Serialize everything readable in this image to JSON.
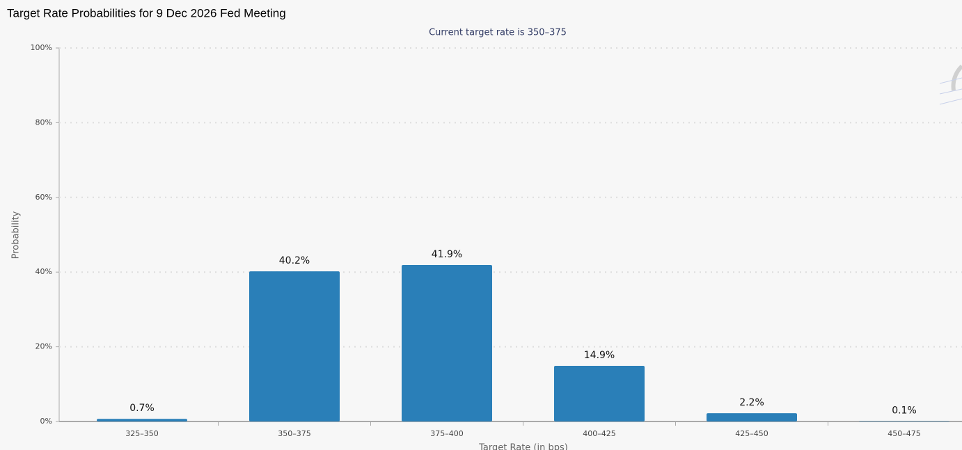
{
  "chart_data": {
    "type": "bar",
    "title": "Target Rate Probabilities for 9 Dec 2026 Fed Meeting",
    "subtitle": "Current target rate is 350–375",
    "x_label": "Target Rate (in bps)",
    "y_label": "Probability",
    "categories": [
      "325–350",
      "350–375",
      "375–400",
      "400–425",
      "425–450",
      "450–475"
    ],
    "values": [
      0.7,
      40.2,
      41.9,
      14.9,
      2.2,
      0.1
    ],
    "value_labels": [
      "0.7%",
      "40.2%",
      "41.9%",
      "14.9%",
      "2.2%",
      "0.1%"
    ],
    "color": "#2a7fb8",
    "ylim": [
      0,
      100
    ],
    "yticks": [
      {
        "value": 0,
        "label": "0%"
      },
      {
        "value": 20,
        "label": "20%"
      },
      {
        "value": 40,
        "label": "40%"
      },
      {
        "value": 60,
        "label": "60%"
      },
      {
        "value": 80,
        "label": "80%"
      },
      {
        "value": 100,
        "label": "100%"
      }
    ],
    "grid": true
  }
}
